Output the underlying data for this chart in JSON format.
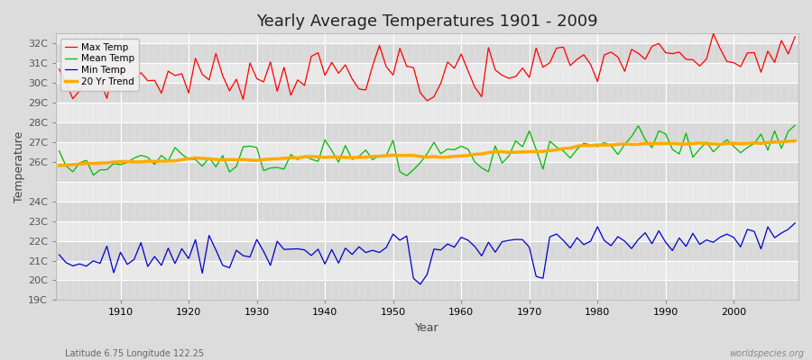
{
  "title": "Yearly Average Temperatures 1901 - 2009",
  "xlabel": "Year",
  "ylabel": "Temperature",
  "footer_left": "Latitude 6.75 Longitude 122.25",
  "footer_right": "worldspecies.org",
  "years_start": 1901,
  "years_end": 2009,
  "background_color": "#dcdcdc",
  "plot_bg_color": "#e8e8e8",
  "grid_color": "#ffffff",
  "band_color_light": "#e8e8e8",
  "band_color_dark": "#d8d8d8",
  "legend_labels": [
    "Max Temp",
    "Mean Temp",
    "Min Temp",
    "20 Yr Trend"
  ],
  "legend_colors": [
    "#ff0000",
    "#00bb00",
    "#0000cc",
    "#ffaa00"
  ],
  "ylim_bottom": 19,
  "ylim_top": 32.5,
  "ytick_labels": [
    "19C",
    "20C",
    "21C",
    "22C",
    "23C",
    "24C",
    "26C",
    "27C",
    "28C",
    "29C",
    "30C",
    "31C",
    "32C"
  ],
  "ytick_values": [
    19,
    20,
    21,
    22,
    23,
    24,
    26,
    27,
    28,
    29,
    30,
    31,
    32
  ],
  "xlim_left": 1901,
  "xlim_right": 2009
}
